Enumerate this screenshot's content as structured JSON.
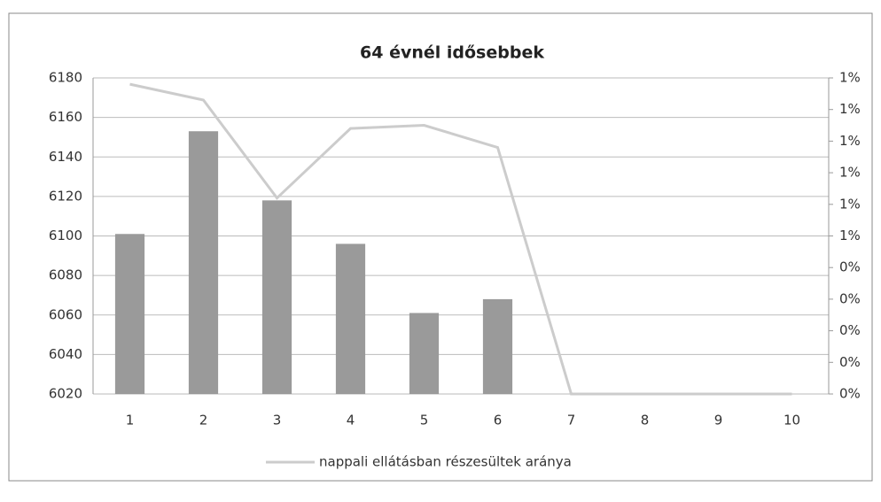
{
  "chart_data": {
    "type": "bar-line",
    "title": "64 évnél idősebbek",
    "categories": [
      "1",
      "2",
      "3",
      "4",
      "5",
      "6",
      "7",
      "8",
      "9",
      "10"
    ],
    "series": [
      {
        "color": "#9a9a9a",
        "values": [
          6101,
          6153,
          6118,
          6096,
          6061,
          6068,
          null,
          null,
          null,
          null
        ]
      },
      {
        "name": "nappali ellátásban részesültek aránya",
        "color": "#cccccc",
        "axis": "y2",
        "values": [
          0.98,
          0.93,
          0.62,
          0.84,
          0.85,
          0.78,
          0,
          0,
          0,
          0
        ]
      }
    ],
    "ylim": [
      6020,
      6180
    ],
    "yticks": [
      6020,
      6040,
      6060,
      6080,
      6100,
      6120,
      6140,
      6160,
      6180
    ],
    "y2lim": [
      0,
      1
    ],
    "y2ticks": [
      {
        "value": 0,
        "label": "0%"
      },
      {
        "value": 0.1,
        "label": "0%"
      },
      {
        "value": 0.2,
        "label": "0%"
      },
      {
        "value": 0.3,
        "label": "0%"
      },
      {
        "value": 0.4,
        "label": "0%"
      },
      {
        "value": 0.5,
        "label": "1%"
      },
      {
        "value": 0.6,
        "label": "1%"
      },
      {
        "value": 0.7,
        "label": "1%"
      },
      {
        "value": 0.8,
        "label": "1%"
      },
      {
        "value": 0.9,
        "label": "1%"
      },
      {
        "value": 1,
        "label": "1%"
      }
    ],
    "grid": true,
    "legend": "bottom"
  }
}
